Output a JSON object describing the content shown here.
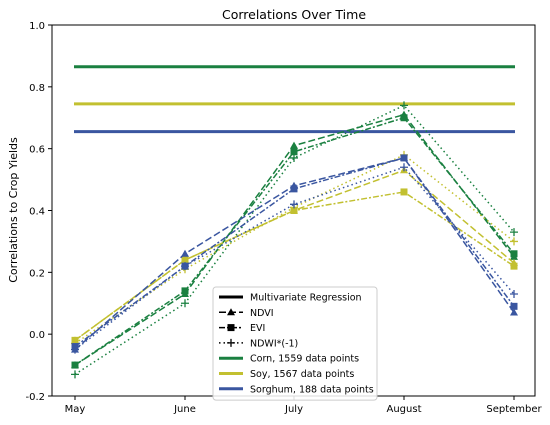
{
  "chart_data": {
    "type": "line",
    "title": "Correlations Over Time",
    "xlabel": "",
    "ylabel": "Correlations to Crop Yields",
    "categories": [
      "May",
      "June",
      "July",
      "August",
      "September"
    ],
    "ylim": [
      -0.2,
      1.0
    ],
    "yticks": [
      "-0.2",
      "0.0",
      "0.2",
      "0.4",
      "0.6",
      "0.8",
      "1.0"
    ],
    "grid": false,
    "colors": {
      "Corn": "#1a8040",
      "Soy": "#c2c030",
      "Sorghum": "#3a56a0"
    },
    "multivariate": [
      {
        "crop": "Corn",
        "value": 0.865
      },
      {
        "crop": "Soy",
        "value": 0.745
      },
      {
        "crop": "Sorghum",
        "value": 0.655
      }
    ],
    "series": [
      {
        "crop": "Corn",
        "index": "NDVI",
        "values": [
          -0.1,
          0.13,
          0.61,
          0.71,
          0.25
        ]
      },
      {
        "crop": "Corn",
        "index": "EVI",
        "values": [
          -0.1,
          0.14,
          0.59,
          0.7,
          0.26
        ]
      },
      {
        "crop": "Corn",
        "index": "NDWI*(-1)",
        "values": [
          -0.13,
          0.1,
          0.57,
          0.74,
          0.33
        ]
      },
      {
        "crop": "Soy",
        "index": "NDVI",
        "values": [
          -0.02,
          0.24,
          0.4,
          0.53,
          0.23
        ]
      },
      {
        "crop": "Soy",
        "index": "EVI",
        "values": [
          -0.02,
          0.24,
          0.4,
          0.46,
          0.22
        ]
      },
      {
        "crop": "Soy",
        "index": "NDWI*(-1)",
        "values": [
          -0.03,
          0.21,
          0.41,
          0.58,
          0.3
        ]
      },
      {
        "crop": "Sorghum",
        "index": "NDVI",
        "values": [
          -0.05,
          0.26,
          0.48,
          0.57,
          0.07
        ]
      },
      {
        "crop": "Sorghum",
        "index": "EVI",
        "values": [
          -0.04,
          0.22,
          0.47,
          0.57,
          0.09
        ]
      },
      {
        "crop": "Sorghum",
        "index": "NDWI*(-1)",
        "values": [
          -0.05,
          0.22,
          0.42,
          0.54,
          0.13
        ]
      }
    ],
    "legend": {
      "position": "lower-center",
      "entries": [
        {
          "label": "Multivariate Regression",
          "kind": "solid"
        },
        {
          "label": "NDVI",
          "kind": "NDVI"
        },
        {
          "label": "EVI",
          "kind": "EVI"
        },
        {
          "label": "NDWI*(-1)",
          "kind": "NDWI*(-1)"
        },
        {
          "label": "Corn, 1559 data points",
          "kind": "Corn"
        },
        {
          "label": "Soy, 1567 data points",
          "kind": "Soy"
        },
        {
          "label": "Sorghum, 188 data points",
          "kind": "Sorghum"
        }
      ]
    }
  }
}
